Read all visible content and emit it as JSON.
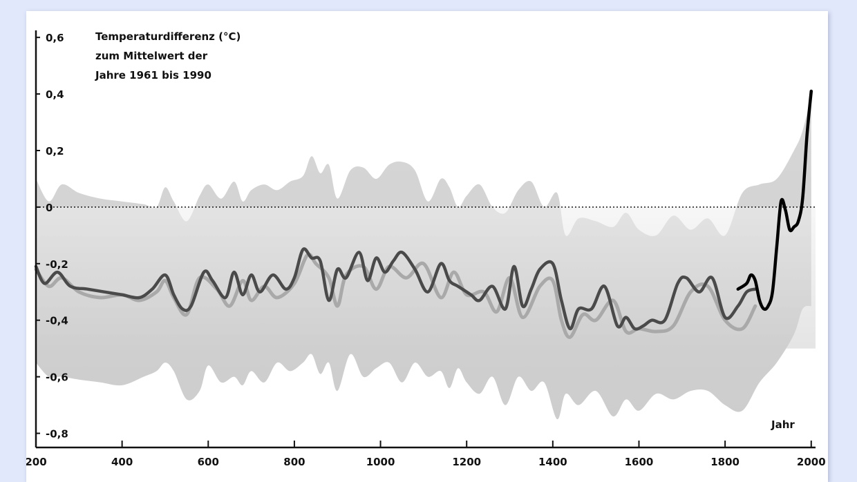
{
  "chart_data": {
    "type": "line",
    "title_lines": [
      "Temperaturdifferenz (°C)",
      "zum Mittelwert der",
      "Jahre 1961 bis 1990"
    ],
    "xlabel": "Jahr",
    "ylabel": "",
    "xlim": [
      200,
      2010
    ],
    "ylim": [
      -0.85,
      0.62
    ],
    "x_ticks": [
      {
        "value": 200,
        "label": "200"
      },
      {
        "value": 400,
        "label": "400"
      },
      {
        "value": 600,
        "label": "600"
      },
      {
        "value": 800,
        "label": "800"
      },
      {
        "value": 1000,
        "label": "1000"
      },
      {
        "value": 1200,
        "label": "1200"
      },
      {
        "value": 1400,
        "label": "1400"
      },
      {
        "value": 1600,
        "label": "1600"
      },
      {
        "value": 1800,
        "label": "1800"
      },
      {
        "value": 2000,
        "label": "2000"
      }
    ],
    "y_ticks": [
      {
        "value": 0.6,
        "label": "0,6"
      },
      {
        "value": 0.4,
        "label": "0,4"
      },
      {
        "value": 0.2,
        "label": "0,2"
      },
      {
        "value": 0,
        "label": "0"
      },
      {
        "value": -0.2,
        "label": "-0,2"
      },
      {
        "value": -0.4,
        "label": "-0,4"
      },
      {
        "value": -0.6,
        "label": "-0,6"
      },
      {
        "value": -0.8,
        "label": "-0,8"
      }
    ],
    "zero_line": "dotted",
    "grid": false,
    "uncertainty_band": {
      "x": [
        200,
        230,
        260,
        300,
        350,
        400,
        450,
        480,
        500,
        520,
        550,
        580,
        600,
        630,
        660,
        680,
        700,
        730,
        760,
        790,
        820,
        840,
        860,
        880,
        900,
        930,
        960,
        990,
        1020,
        1050,
        1080,
        1110,
        1140,
        1160,
        1180,
        1200,
        1230,
        1260,
        1290,
        1320,
        1350,
        1380,
        1410,
        1430,
        1460,
        1500,
        1540,
        1570,
        1600,
        1640,
        1680,
        1720,
        1760,
        1800,
        1840,
        1880,
        1920,
        1960,
        1980,
        2000
      ],
      "upper": [
        0.1,
        0.02,
        0.08,
        0.05,
        0.03,
        0.02,
        0.01,
        0.0,
        0.07,
        0.02,
        -0.05,
        0.04,
        0.08,
        0.03,
        0.09,
        0.02,
        0.06,
        0.08,
        0.06,
        0.09,
        0.11,
        0.18,
        0.12,
        0.15,
        0.03,
        0.13,
        0.14,
        0.1,
        0.15,
        0.16,
        0.13,
        0.02,
        0.1,
        0.07,
        0.0,
        0.04,
        0.08,
        0.0,
        -0.02,
        0.06,
        0.09,
        0.0,
        0.05,
        -0.1,
        -0.04,
        -0.05,
        -0.07,
        -0.02,
        -0.08,
        -0.1,
        -0.03,
        -0.08,
        -0.04,
        -0.1,
        0.05,
        0.08,
        0.1,
        0.2,
        0.27,
        0.4
      ],
      "lower": [
        -0.55,
        -0.6,
        -0.6,
        -0.61,
        -0.62,
        -0.63,
        -0.6,
        -0.58,
        -0.55,
        -0.58,
        -0.68,
        -0.65,
        -0.56,
        -0.62,
        -0.6,
        -0.63,
        -0.58,
        -0.62,
        -0.55,
        -0.58,
        -0.55,
        -0.52,
        -0.59,
        -0.55,
        -0.65,
        -0.52,
        -0.6,
        -0.57,
        -0.55,
        -0.62,
        -0.55,
        -0.6,
        -0.58,
        -0.64,
        -0.57,
        -0.62,
        -0.66,
        -0.6,
        -0.7,
        -0.6,
        -0.65,
        -0.62,
        -0.75,
        -0.66,
        -0.7,
        -0.65,
        -0.74,
        -0.68,
        -0.72,
        -0.66,
        -0.68,
        -0.65,
        -0.65,
        -0.7,
        -0.72,
        -0.62,
        -0.55,
        -0.45,
        -0.36,
        -0.35
      ]
    },
    "series": [
      {
        "role": "reconstruction-light",
        "color": "#a9a9a9",
        "x": [
          200,
          230,
          260,
          300,
          350,
          400,
          440,
          480,
          500,
          520,
          550,
          580,
          620,
          650,
          680,
          700,
          730,
          760,
          800,
          830,
          850,
          880,
          900,
          920,
          960,
          990,
          1020,
          1060,
          1100,
          1140,
          1170,
          1200,
          1240,
          1270,
          1300,
          1330,
          1370,
          1400,
          1420,
          1440,
          1470,
          1500,
          1540,
          1570,
          1600,
          1640,
          1680,
          1720,
          1760,
          1800,
          1840,
          1870
        ],
        "y": [
          -0.22,
          -0.28,
          -0.25,
          -0.3,
          -0.32,
          -0.31,
          -0.33,
          -0.3,
          -0.26,
          -0.32,
          -0.38,
          -0.25,
          -0.29,
          -0.35,
          -0.26,
          -0.33,
          -0.28,
          -0.32,
          -0.27,
          -0.17,
          -0.2,
          -0.25,
          -0.35,
          -0.24,
          -0.21,
          -0.29,
          -0.21,
          -0.25,
          -0.2,
          -0.32,
          -0.23,
          -0.31,
          -0.3,
          -0.37,
          -0.25,
          -0.39,
          -0.28,
          -0.26,
          -0.4,
          -0.46,
          -0.38,
          -0.4,
          -0.33,
          -0.44,
          -0.43,
          -0.44,
          -0.42,
          -0.3,
          -0.28,
          -0.4,
          -0.43,
          -0.35
        ]
      },
      {
        "role": "reconstruction-dark",
        "color": "#4a4a4a",
        "x": [
          200,
          220,
          250,
          280,
          320,
          360,
          400,
          440,
          470,
          500,
          520,
          540,
          560,
          590,
          610,
          640,
          660,
          680,
          700,
          720,
          750,
          780,
          800,
          820,
          840,
          860,
          880,
          900,
          920,
          950,
          970,
          990,
          1010,
          1030,
          1050,
          1080,
          1110,
          1140,
          1160,
          1180,
          1210,
          1230,
          1260,
          1290,
          1310,
          1330,
          1350,
          1370,
          1400,
          1420,
          1440,
          1460,
          1490,
          1520,
          1550,
          1570,
          1590,
          1610,
          1630,
          1660,
          1690,
          1710,
          1740,
          1770,
          1800,
          1830,
          1850,
          1870
        ],
        "y": [
          -0.21,
          -0.27,
          -0.23,
          -0.28,
          -0.29,
          -0.3,
          -0.31,
          -0.32,
          -0.29,
          -0.24,
          -0.31,
          -0.36,
          -0.35,
          -0.23,
          -0.26,
          -0.32,
          -0.23,
          -0.31,
          -0.24,
          -0.3,
          -0.24,
          -0.29,
          -0.25,
          -0.15,
          -0.18,
          -0.19,
          -0.33,
          -0.22,
          -0.25,
          -0.16,
          -0.26,
          -0.18,
          -0.23,
          -0.19,
          -0.16,
          -0.22,
          -0.3,
          -0.2,
          -0.26,
          -0.28,
          -0.31,
          -0.33,
          -0.28,
          -0.36,
          -0.21,
          -0.35,
          -0.29,
          -0.22,
          -0.2,
          -0.33,
          -0.43,
          -0.36,
          -0.36,
          -0.28,
          -0.42,
          -0.39,
          -0.43,
          -0.42,
          -0.4,
          -0.4,
          -0.27,
          -0.25,
          -0.3,
          -0.25,
          -0.39,
          -0.35,
          -0.3,
          -0.29
        ]
      },
      {
        "role": "instrumental",
        "color": "#000000",
        "x": [
          1830,
          1850,
          1860,
          1870,
          1880,
          1890,
          1900,
          1910,
          1920,
          1930,
          1940,
          1950,
          1960,
          1970,
          1980,
          1990,
          2000
        ],
        "y": [
          -0.29,
          -0.27,
          -0.24,
          -0.26,
          -0.33,
          -0.36,
          -0.35,
          -0.3,
          -0.14,
          0.02,
          -0.01,
          -0.08,
          -0.07,
          -0.05,
          0.03,
          0.25,
          0.41
        ]
      }
    ]
  }
}
